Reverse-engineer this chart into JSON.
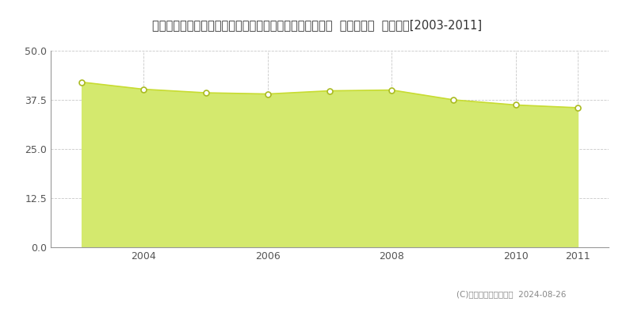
{
  "title": "埼玉県さいたま市見沼区大字小深作字藤十郎原２６６番５  基準地価格  地価推移[2003-2011]",
  "years": [
    2003,
    2004,
    2005,
    2006,
    2007,
    2008,
    2009,
    2010,
    2011
  ],
  "values": [
    42.0,
    40.2,
    39.3,
    39.0,
    39.8,
    40.0,
    37.5,
    36.2,
    35.5
  ],
  "ylim": [
    0,
    50
  ],
  "yticks": [
    0,
    12.5,
    25,
    37.5,
    50
  ],
  "xtick_labels": [
    "2004",
    "2006",
    "2008",
    "2010",
    "2011"
  ],
  "xtick_positions": [
    2004,
    2006,
    2008,
    2010,
    2011
  ],
  "fill_color": "#d4e96e",
  "line_color": "#c8dc32",
  "marker_facecolor": "#ffffff",
  "marker_edgecolor": "#aabb22",
  "grid_color": "#bbbbbb",
  "background_color": "#ffffff",
  "copyright_text": "(C)土地価格ドットコム  2024-08-26",
  "title_fontsize": 10.5,
  "axis_fontsize": 9,
  "legend_fontsize": 9
}
